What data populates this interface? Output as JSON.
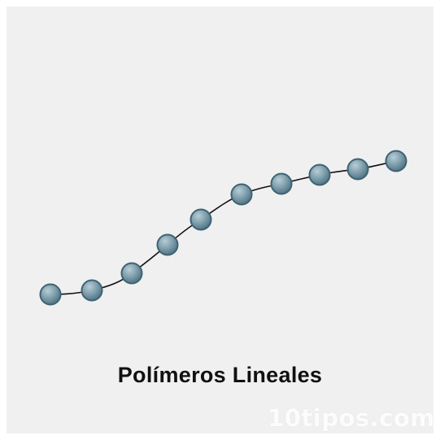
{
  "title": "Polímeros Lineales",
  "watermark": "10tipos.com",
  "colors": {
    "background": "#f0f0f0",
    "bead_fill_light": "#a9c2cd",
    "bead_fill_dark": "#4f7383",
    "bead_stroke": "#3e6373",
    "chain": "#111111"
  },
  "diagram": {
    "type": "linear-polymer-chain",
    "bead_count": 10
  }
}
